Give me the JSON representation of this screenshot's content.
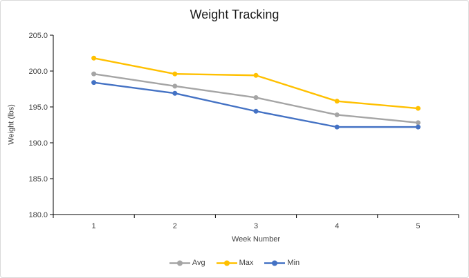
{
  "chart_data": {
    "type": "line",
    "title": "Weight Tracking",
    "xlabel": "Week Number",
    "ylabel": "Weight (lbs)",
    "categories": [
      "1",
      "2",
      "3",
      "4",
      "5"
    ],
    "series": [
      {
        "name": "Avg",
        "color": "#A5A5A5",
        "values": [
          199.6,
          197.9,
          196.3,
          193.9,
          192.8
        ]
      },
      {
        "name": "Max",
        "color": "#FFC000",
        "values": [
          201.8,
          199.6,
          199.4,
          195.8,
          194.8
        ]
      },
      {
        "name": "Min",
        "color": "#4472C4",
        "values": [
          198.4,
          196.9,
          194.4,
          192.2,
          192.2
        ]
      }
    ],
    "ylim": [
      180,
      205
    ],
    "ytick_step": 5,
    "ytick_labels": [
      "180.0",
      "185.0",
      "190.0",
      "195.0",
      "200.0",
      "205.0"
    ],
    "grid": false,
    "legend_position": "bottom",
    "marker": "circle",
    "axis_color": "#000000",
    "text_color": "#404040",
    "title_color": "#1a1a1a"
  }
}
